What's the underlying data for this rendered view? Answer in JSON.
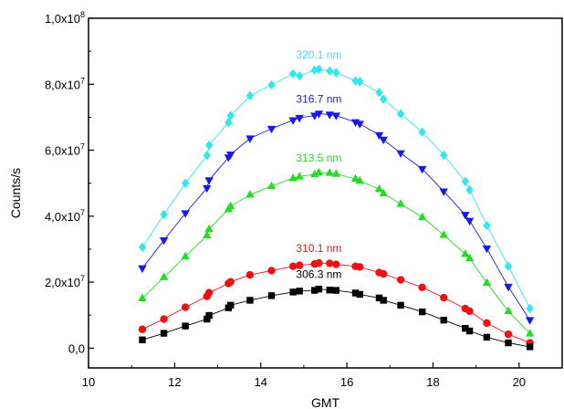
{
  "chart_data": {
    "type": "scatter",
    "title": "",
    "xlabel": "GMT",
    "ylabel": "Counts/s",
    "xlim": [
      10,
      21
    ],
    "ylim": [
      -6000000,
      100000000
    ],
    "x_ticks": [
      10,
      12,
      14,
      16,
      18,
      20
    ],
    "x_tick_labels": [
      "10",
      "12",
      "14",
      "16",
      "18",
      "20"
    ],
    "y_ticks": [
      0,
      20000000,
      40000000,
      60000000,
      80000000,
      100000000
    ],
    "y_tick_labels": [
      {
        "base": "0,0",
        "exp": ""
      },
      {
        "base": "2,0x10",
        "exp": "7"
      },
      {
        "base": "4,0x10",
        "exp": "7"
      },
      {
        "base": "6,0x10",
        "exp": "7"
      },
      {
        "base": "8,0x10",
        "exp": "7"
      },
      {
        "base": "1,0x10",
        "exp": "8"
      }
    ],
    "grid": false,
    "legend": "none (series labels placed on curves)",
    "x": [
      11.25,
      11.75,
      12.25,
      12.75,
      12.8,
      13.25,
      13.3,
      13.75,
      14.25,
      14.75,
      14.9,
      15.25,
      15.35,
      15.6,
      15.75,
      16.2,
      16.3,
      16.75,
      16.85,
      17.25,
      17.75,
      18.25,
      18.75,
      18.85,
      19.25,
      19.75,
      20.25
    ],
    "series": [
      {
        "name": "320.1 nm",
        "color": "#33E6EE",
        "marker": "diamond",
        "values": [
          30600000,
          40500000,
          50000000,
          58400000,
          61500000,
          68400000,
          70500000,
          76500000,
          79800000,
          83200000,
          82500000,
          84300000,
          84500000,
          84000000,
          83500000,
          81000000,
          80800000,
          77500000,
          75500000,
          71000000,
          65500000,
          58500000,
          50500000,
          48000000,
          37200000,
          24800000,
          12000000
        ]
      },
      {
        "name": "316.7 nm",
        "color": "#1A1AE6",
        "marker": "triangle-down",
        "values": [
          24200000,
          32700000,
          40900000,
          48500000,
          50900000,
          57800000,
          58700000,
          63600000,
          66500000,
          69100000,
          69800000,
          70500000,
          71100000,
          70800000,
          70500000,
          68500000,
          68000000,
          64600000,
          63200000,
          59100000,
          54300000,
          47500000,
          40400000,
          38600000,
          30200000,
          18600000,
          8500000
        ]
      },
      {
        "name": "313.5 nm",
        "color": "#22DD22",
        "marker": "triangle-up",
        "values": [
          15100000,
          21500000,
          27800000,
          34200000,
          36100000,
          42100000,
          43000000,
          46500000,
          49100000,
          51500000,
          52000000,
          52700000,
          53200000,
          53100000,
          52800000,
          51300000,
          50700000,
          48200000,
          46900000,
          43700000,
          39700000,
          34300000,
          28500000,
          27200000,
          19800000,
          11200000,
          4400000
        ]
      },
      {
        "name": "310.1 nm",
        "color": "#EE1111",
        "marker": "circle",
        "values": [
          5700000,
          8800000,
          12400000,
          15700000,
          16800000,
          19600000,
          20100000,
          22200000,
          23500000,
          24800000,
          25100000,
          25500000,
          25800000,
          25700000,
          25400000,
          24800000,
          24600000,
          22900000,
          22500000,
          20700000,
          18400000,
          15300000,
          12000000,
          11200000,
          7600000,
          4200000,
          1600000
        ]
      },
      {
        "name": "306.3 nm",
        "color": "#000000",
        "marker": "square",
        "values": [
          2500000,
          4500000,
          6700000,
          8800000,
          9900000,
          12200000,
          13000000,
          14500000,
          15900000,
          17000000,
          17300000,
          17500000,
          17900000,
          17600000,
          17500000,
          16700000,
          16300000,
          15200000,
          14500000,
          13000000,
          11000000,
          8500000,
          6000000,
          5200000,
          3300000,
          1600000,
          400000
        ]
      }
    ]
  }
}
